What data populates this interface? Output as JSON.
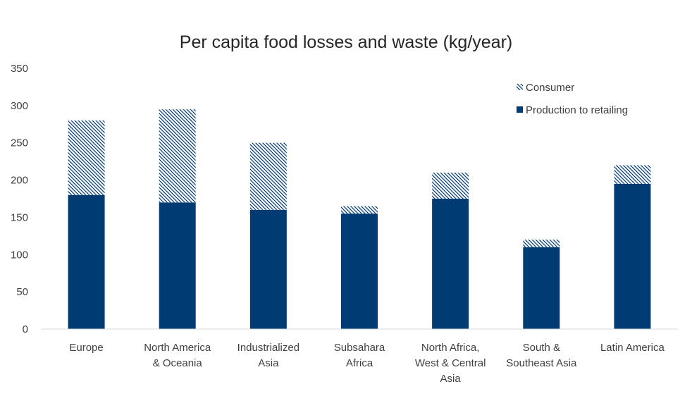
{
  "chart_data": {
    "type": "bar",
    "stacked": true,
    "title": "Per capita food losses and waste (kg/year)",
    "xlabel": "",
    "ylabel": "",
    "ylim": [
      0,
      350
    ],
    "yticks": [
      0,
      50,
      100,
      150,
      200,
      250,
      300,
      350
    ],
    "grid": false,
    "legend_position": "top-right",
    "categories": [
      [
        "Europe"
      ],
      [
        "North America",
        "& Oceania"
      ],
      [
        "Industrialized",
        "Asia"
      ],
      [
        "Subsahara",
        "Africa"
      ],
      [
        "North Africa,",
        "West & Central",
        "Asia"
      ],
      [
        "South &",
        "Southeast Asia"
      ],
      [
        "Latin America"
      ]
    ],
    "series": [
      {
        "name": "Production to retailing",
        "style": "solid",
        "color": "#003b73",
        "values": [
          180,
          170,
          160,
          155,
          175,
          110,
          195
        ]
      },
      {
        "name": "Consumer",
        "style": "hatched",
        "color": "#003b73",
        "values": [
          100,
          125,
          90,
          10,
          35,
          10,
          25
        ]
      }
    ],
    "legend_order": [
      "Consumer",
      "Production to retailing"
    ]
  }
}
